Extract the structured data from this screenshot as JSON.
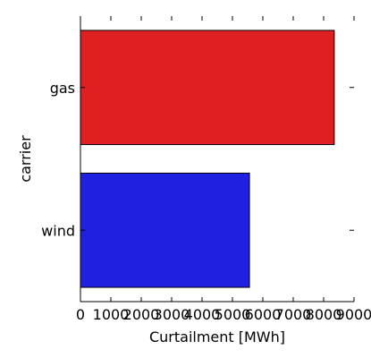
{
  "chart_data": {
    "type": "bar",
    "orientation": "horizontal",
    "categories": [
      "gas",
      "wind"
    ],
    "values": [
      8350,
      5560
    ],
    "colors": [
      "#e02020",
      "#2020e0"
    ],
    "xlabel": "Curtailment [MWh]",
    "ylabel": "carrier",
    "xlim": [
      0,
      9000
    ],
    "xticks": [
      "0",
      "1000",
      "2000",
      "3000",
      "4000",
      "5000",
      "6000",
      "7000",
      "8000",
      "9000"
    ],
    "grid": false,
    "legend": "none"
  }
}
